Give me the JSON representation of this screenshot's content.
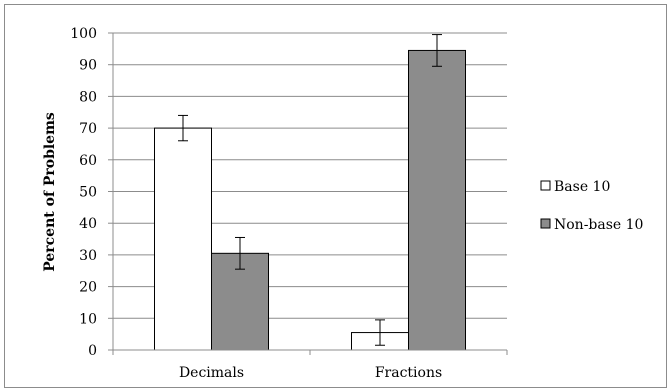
{
  "chart_data": {
    "type": "bar",
    "title": "",
    "xlabel": "",
    "ylabel": "Percent of Problems",
    "ylim": [
      0,
      100
    ],
    "yticks": [
      0,
      10,
      20,
      30,
      40,
      50,
      60,
      70,
      80,
      90,
      100
    ],
    "grid": true,
    "legend_position": "right",
    "categories": [
      "Decimals",
      "Fractions"
    ],
    "series": [
      {
        "name": "Base 10",
        "color": "#ffffff",
        "values": [
          70,
          5.5
        ],
        "error": [
          4,
          4
        ]
      },
      {
        "name": "Non-base 10",
        "color": "#8c8c8c",
        "values": [
          30.5,
          94.5
        ],
        "error": [
          5,
          5
        ]
      }
    ]
  }
}
